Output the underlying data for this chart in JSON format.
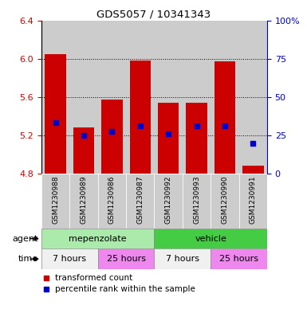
{
  "title": "GDS5057 / 10341343",
  "samples": [
    "GSM1230988",
    "GSM1230989",
    "GSM1230986",
    "GSM1230987",
    "GSM1230992",
    "GSM1230993",
    "GSM1230990",
    "GSM1230991"
  ],
  "bar_bottom": 4.8,
  "bar_top": [
    6.05,
    5.28,
    5.57,
    5.98,
    5.54,
    5.54,
    5.97,
    4.88
  ],
  "percentile_values": [
    5.33,
    5.2,
    5.24,
    5.3,
    5.22,
    5.3,
    5.3,
    5.12
  ],
  "ylim_left": [
    4.8,
    6.4
  ],
  "ylim_right": [
    0,
    100
  ],
  "yticks_left": [
    4.8,
    5.2,
    5.6,
    6.0,
    6.4
  ],
  "yticks_right": [
    0,
    25,
    50,
    75,
    100
  ],
  "ytick_labels_right": [
    "0",
    "25",
    "50",
    "75",
    "100%"
  ],
  "bar_color": "#cc0000",
  "percentile_color": "#0000cc",
  "col_bg_color": "#cccccc",
  "agent_groups": [
    {
      "label": "mepenzolate",
      "start": 0,
      "end": 4,
      "color": "#aaeaaa"
    },
    {
      "label": "vehicle",
      "start": 4,
      "end": 8,
      "color": "#44cc44"
    }
  ],
  "time_groups": [
    {
      "label": "7 hours",
      "start": 0,
      "end": 2,
      "color": "#f0f0f0"
    },
    {
      "label": "25 hours",
      "start": 2,
      "end": 4,
      "color": "#ee88ee"
    },
    {
      "label": "7 hours",
      "start": 4,
      "end": 6,
      "color": "#f0f0f0"
    },
    {
      "label": "25 hours",
      "start": 6,
      "end": 8,
      "color": "#ee88ee"
    }
  ],
  "legend_items": [
    {
      "label": "transformed count",
      "color": "#cc0000"
    },
    {
      "label": "percentile rank within the sample",
      "color": "#0000cc"
    }
  ],
  "agent_label": "agent",
  "time_label": "time",
  "left_axis_color": "#cc0000",
  "right_axis_color": "#0000cc",
  "plot_bg_color": "#ffffff",
  "fig_bg_color": "#ffffff"
}
